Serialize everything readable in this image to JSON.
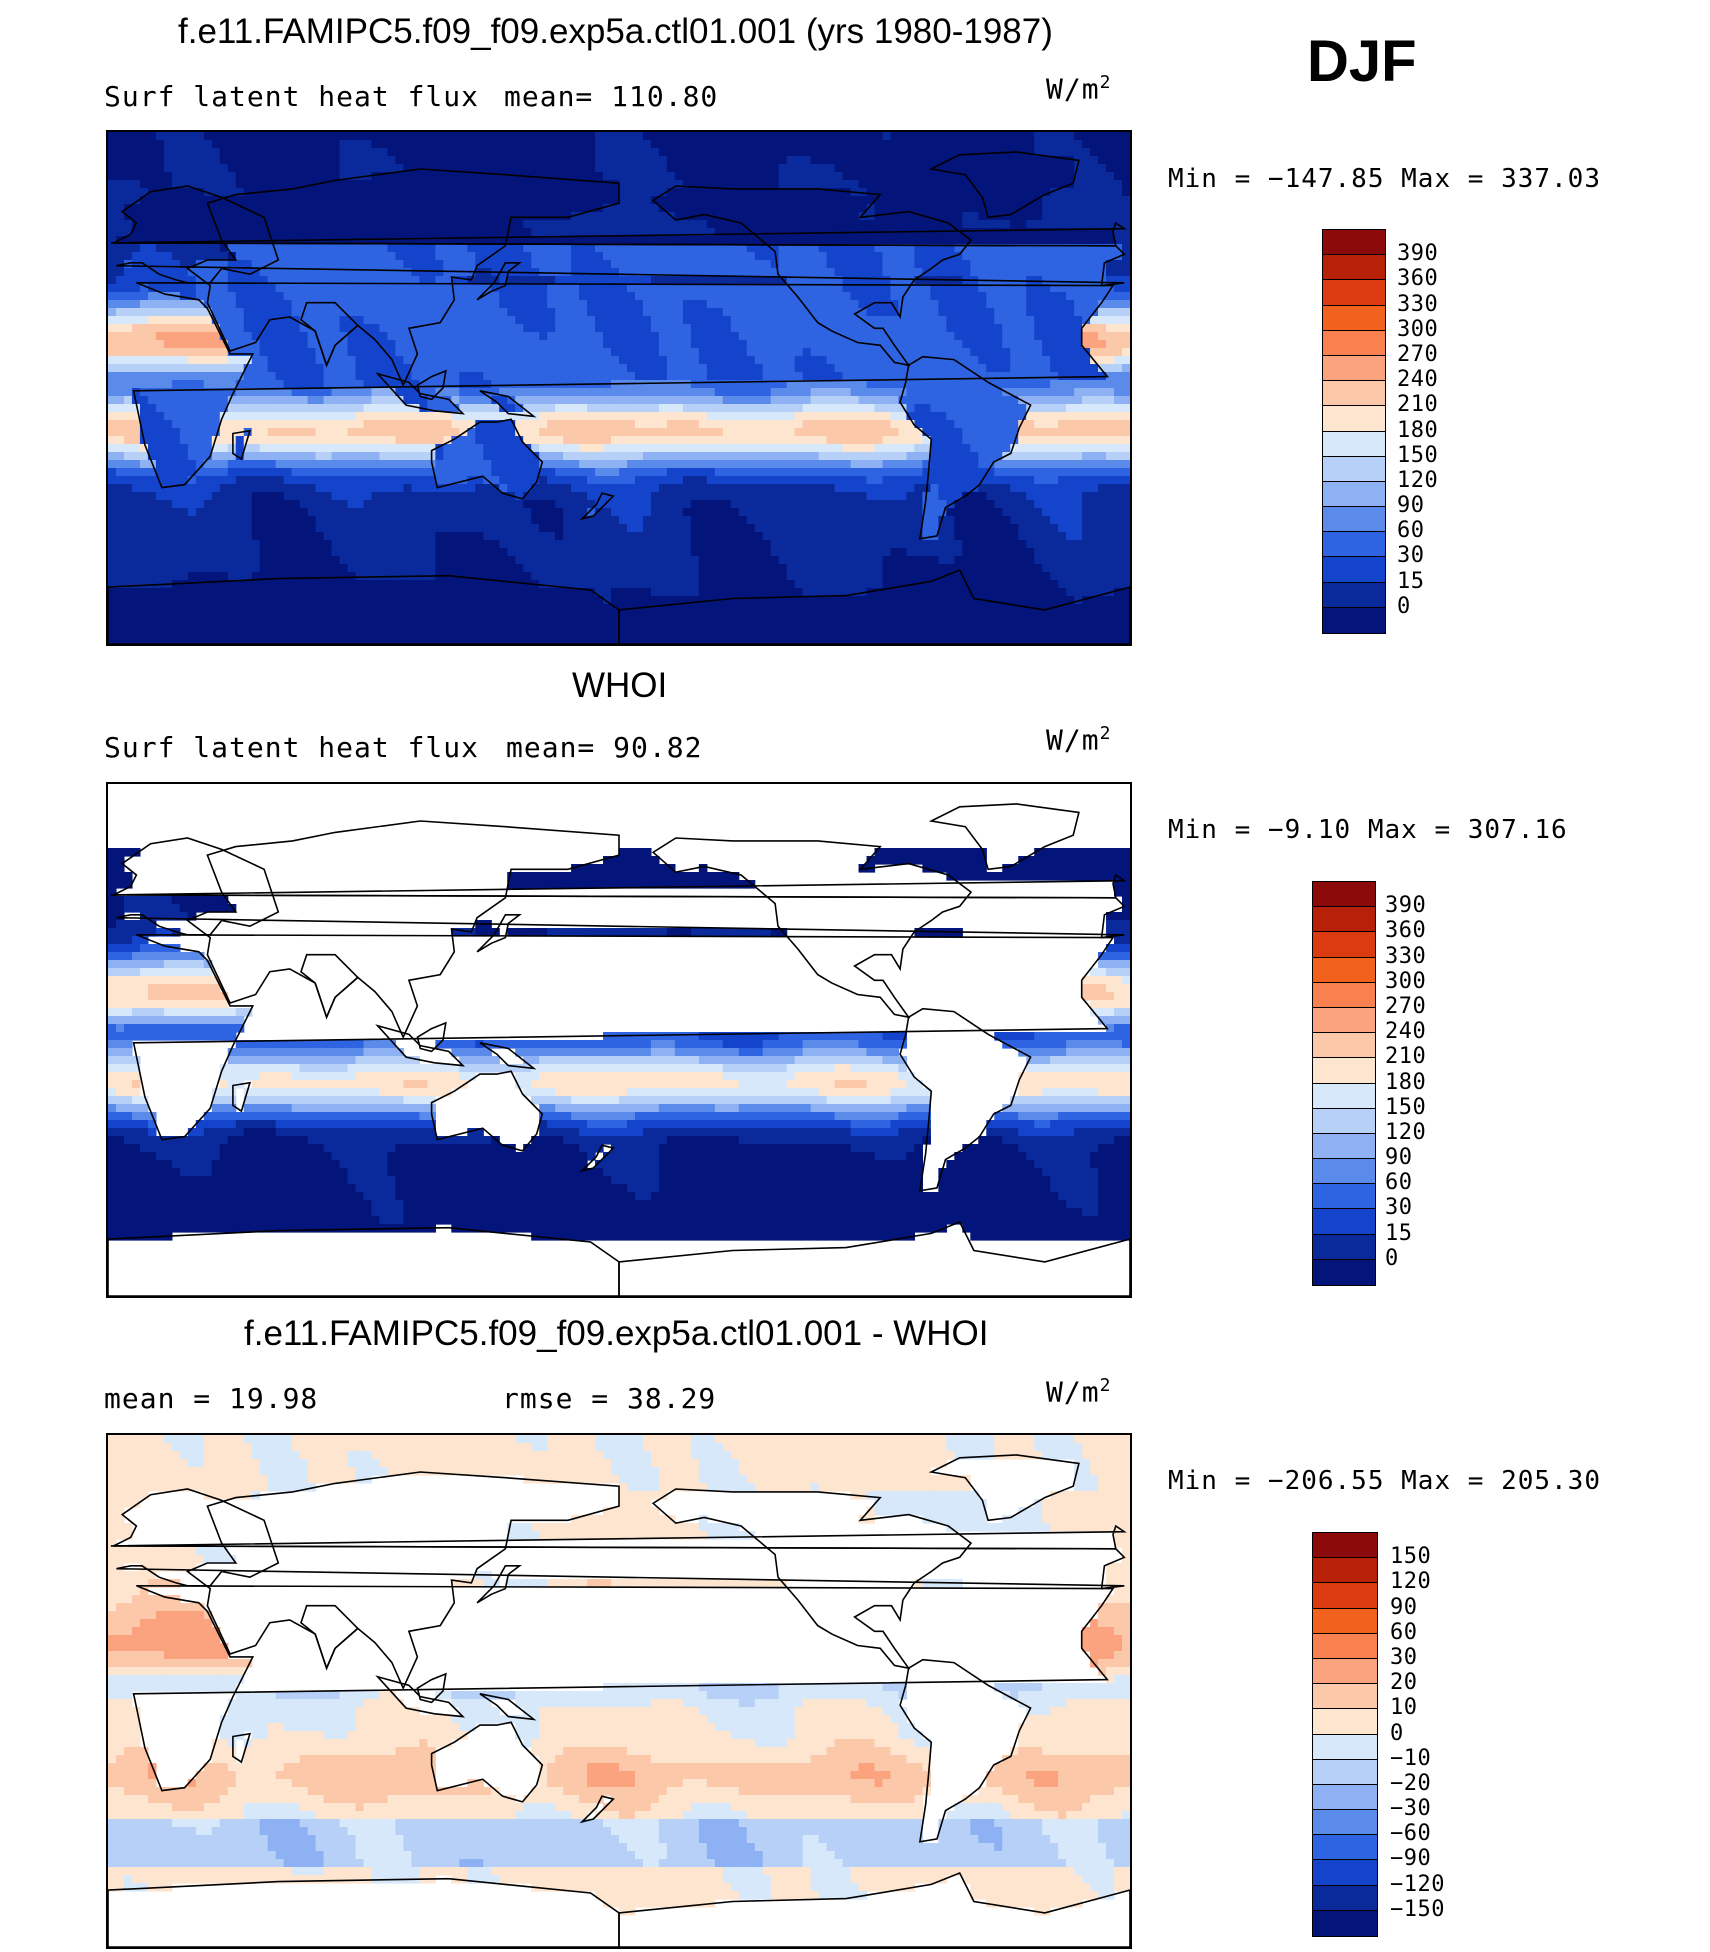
{
  "season": "DJF",
  "panels": [
    {
      "id": "model",
      "title": "f.e11.FAMIPC5.f09_f09.exp5a.ctl01.001 (yrs 1980-1987)",
      "left_label": "Surf latent heat flux",
      "mid_label": "mean= 110.80",
      "units": "W/m",
      "units_sup": "2",
      "minmax": "Min = −147.85 Max = 337.03",
      "map_style": "model",
      "colorbar": {
        "levels": [
          "390",
          "360",
          "330",
          "300",
          "270",
          "240",
          "210",
          "180",
          "150",
          "120",
          "90",
          "60",
          "30",
          "15",
          "0"
        ],
        "colors": [
          "#8c0a0a",
          "#b82008",
          "#dc3a10",
          "#f2611e",
          "#f98150",
          "#fba37e",
          "#fcc8aa",
          "#fde5d0",
          "#d8e8fb",
          "#b6d0f8",
          "#8db1f2",
          "#5a8bea",
          "#2e64e2",
          "#1544cc",
          "#0a2a9c",
          "#03147a"
        ]
      }
    },
    {
      "id": "obs",
      "title": "WHOI",
      "left_label": "Surf latent heat flux",
      "mid_label": "mean=  90.82",
      "units": "W/m",
      "units_sup": "2",
      "minmax": "Min =  −9.10 Max = 307.16",
      "map_style": "obs",
      "colorbar": {
        "levels": [
          "390",
          "360",
          "330",
          "300",
          "270",
          "240",
          "210",
          "180",
          "150",
          "120",
          "90",
          "60",
          "30",
          "15",
          "0"
        ],
        "colors": [
          "#8c0a0a",
          "#b82008",
          "#dc3a10",
          "#f2611e",
          "#f98150",
          "#fba37e",
          "#fcc8aa",
          "#fde5d0",
          "#d8e8fb",
          "#b6d0f8",
          "#8db1f2",
          "#5a8bea",
          "#2e64e2",
          "#1544cc",
          "#0a2a9c",
          "#03147a"
        ]
      }
    },
    {
      "id": "diff",
      "title": "f.e11.FAMIPC5.f09_f09.exp5a.ctl01.001 - WHOI",
      "left_label": "mean =   19.98",
      "mid_label": "rmse =   38.29",
      "units": "W/m",
      "units_sup": "2",
      "minmax": "Min = −206.55 Max = 205.30",
      "map_style": "diff",
      "colorbar": {
        "levels": [
          "150",
          "120",
          "90",
          "60",
          "30",
          "20",
          "10",
          "0",
          "−10",
          "−20",
          "−30",
          "−60",
          "−90",
          "−120",
          "−150"
        ],
        "colors": [
          "#8c0a0a",
          "#b82008",
          "#dc3a10",
          "#f2611e",
          "#f98150",
          "#fba37e",
          "#fcc8aa",
          "#fde5d0",
          "#d8e8fb",
          "#b6d0f8",
          "#8db1f2",
          "#5a8bea",
          "#2e64e2",
          "#1544cc",
          "#0a2a9c",
          "#03147a"
        ]
      }
    }
  ]
}
